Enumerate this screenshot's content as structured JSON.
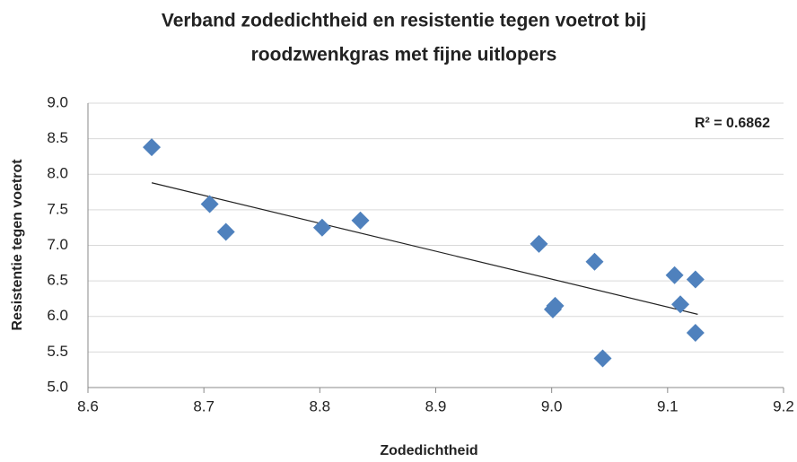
{
  "chart_data": {
    "type": "scatter",
    "title": [
      "Verband zodedichtheid en resistentie tegen voetrot bij",
      "roodzwenkgras met fijne uitlopers"
    ],
    "x_label": "Zodedichtheid",
    "y_label": "Resistentie tegen voetrot",
    "annotation": "R² = 0.6862",
    "series": [
      {
        "color": "#4f81bd",
        "x": [
          8.655,
          8.705,
          8.719,
          8.802,
          8.835,
          8.989,
          9.003,
          9.001,
          9.037,
          9.044,
          9.106,
          9.124,
          9.111,
          9.124
        ],
        "values": [
          8.38,
          7.58,
          7.19,
          7.25,
          7.35,
          7.02,
          6.15,
          6.1,
          6.77,
          5.41,
          6.58,
          6.52,
          6.17,
          5.77
        ]
      }
    ],
    "trendline": {
      "color": "#222222",
      "x": [
        8.655,
        9.126
      ],
      "values": [
        7.88,
        6.03
      ]
    },
    "xlim": [
      8.6,
      9.2
    ],
    "xticks": [
      8.6,
      8.7,
      8.8,
      8.9,
      {
        "value": 9,
        "label": "9.0"
      },
      9.1,
      9.2
    ],
    "ylim": [
      5,
      9
    ],
    "yticks": [
      {
        "value": 5,
        "label": "5.0"
      },
      5.5,
      {
        "value": 6,
        "label": "6.0"
      },
      6.5,
      {
        "value": 7,
        "label": "7.0"
      },
      7.5,
      {
        "value": 8,
        "label": "8.0"
      },
      8.5,
      {
        "value": 9,
        "label": "9.0"
      }
    ],
    "grid": true
  }
}
